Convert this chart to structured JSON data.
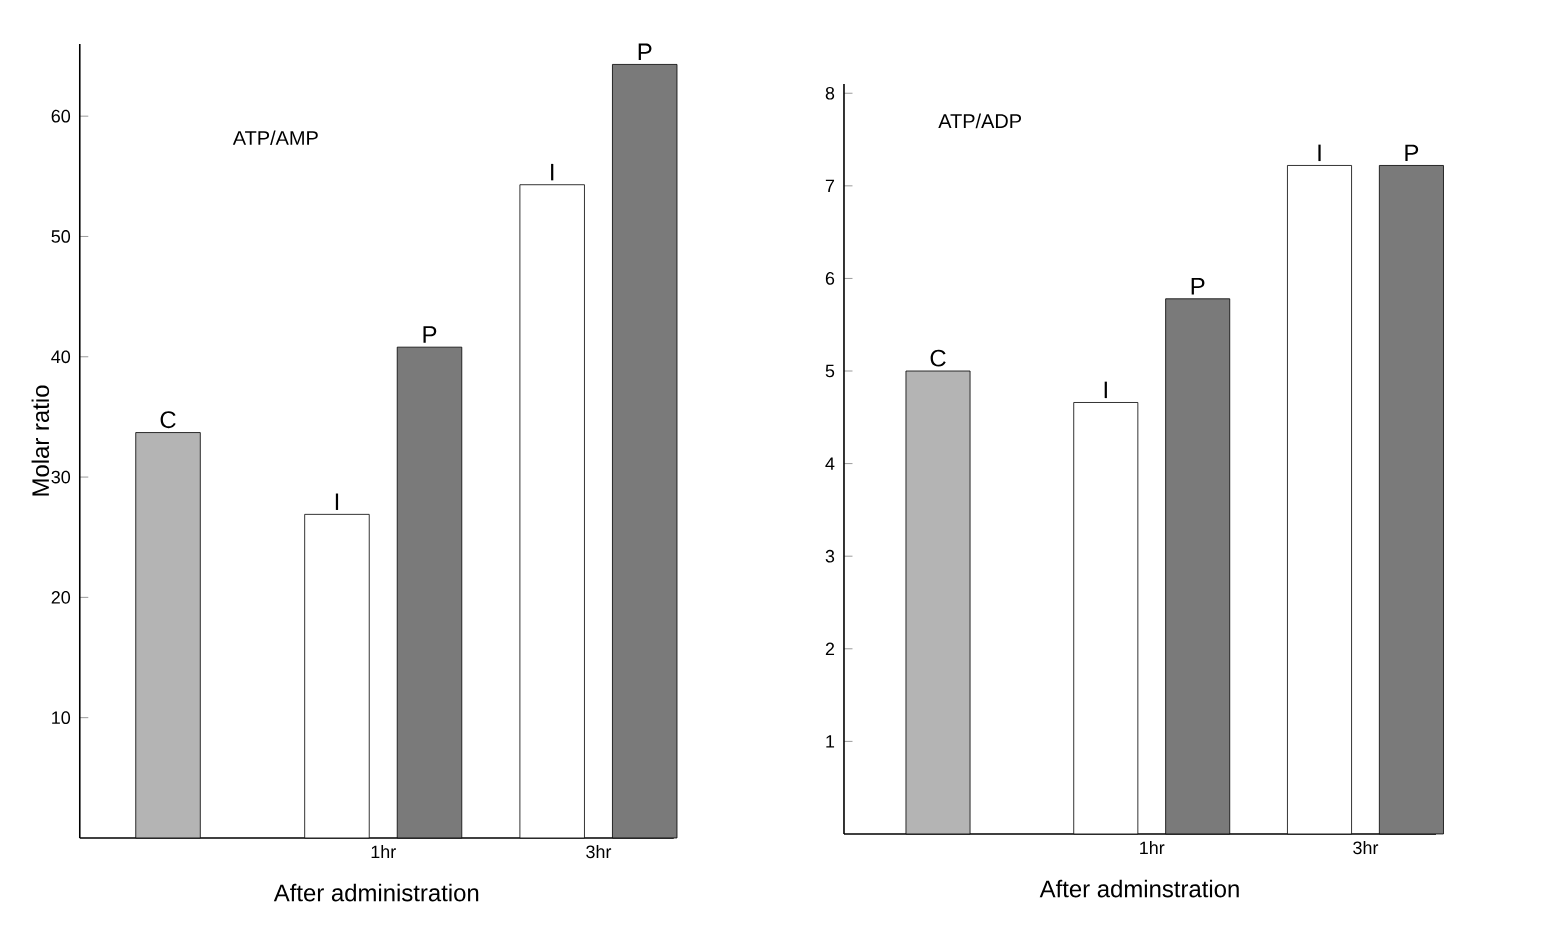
{
  "chart_data": [
    {
      "type": "bar",
      "title": "ATP/AMP",
      "xlabel": "After administration",
      "ylabel": "Molar ratio",
      "categories": [
        null,
        "1hr",
        "3hr"
      ],
      "ylim": [
        0,
        66
      ],
      "yticks": [
        10,
        20,
        30,
        40,
        50,
        60
      ],
      "series": [
        {
          "name": "C",
          "color": "#b4b4b4",
          "values": [
            33.7,
            null,
            null
          ]
        },
        {
          "name": "I",
          "color": "#ffffff",
          "values": [
            null,
            26.9,
            54.3
          ]
        },
        {
          "name": "P",
          "color": "#7a7a7a",
          "values": [
            null,
            40.8,
            64.3
          ]
        }
      ]
    },
    {
      "type": "bar",
      "title": "ATP/ADP",
      "xlabel": "After adminstration",
      "categories": [
        null,
        "1hr",
        "3hr"
      ],
      "ylim": [
        0,
        8.1
      ],
      "yticks": [
        1,
        2,
        3,
        4,
        5,
        6,
        7,
        8
      ],
      "series": [
        {
          "name": "C",
          "color": "#b4b4b4",
          "values": [
            5.0,
            null,
            null
          ]
        },
        {
          "name": "I",
          "color": "#ffffff",
          "values": [
            null,
            4.66,
            7.22
          ]
        },
        {
          "name": "P",
          "color": "#7a7a7a",
          "values": [
            null,
            5.78,
            7.22
          ]
        }
      ]
    }
  ]
}
